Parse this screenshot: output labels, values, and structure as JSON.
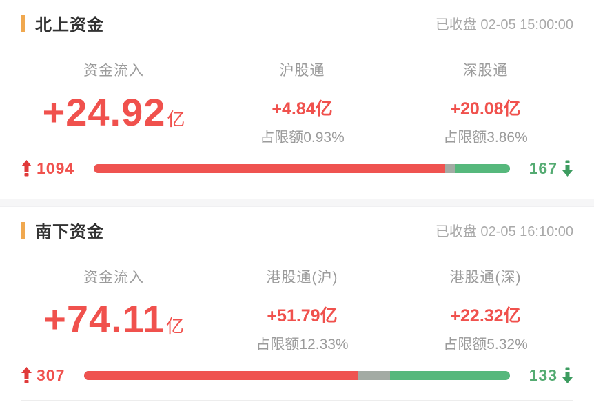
{
  "colors": {
    "accent_orange": "#f0a84f",
    "value_red": "#f0514d",
    "value_green": "#54ab72",
    "bar_red": "#ef5350",
    "bar_gray": "#a3aba4",
    "bar_green": "#56b87c",
    "label_gray": "#9b9b9b"
  },
  "sections": [
    {
      "title": "北上资金",
      "status": "已收盘 02-05 15:00:00",
      "main": {
        "label": "资金流入",
        "value": "+24.92",
        "unit": "亿"
      },
      "columns": [
        {
          "label": "沪股通",
          "value": "+4.84亿",
          "quota": "占限额0.93%"
        },
        {
          "label": "深股通",
          "value": "+20.08亿",
          "quota": "占限额3.86%"
        }
      ],
      "breadth": {
        "up_count": "1094",
        "down_count": "167",
        "red_pct": 84.5,
        "gray_pct": 2.4,
        "green_pct": 13.1
      }
    },
    {
      "title": "南下资金",
      "status": "已收盘 02-05 16:10:00",
      "main": {
        "label": "资金流入",
        "value": "+74.11",
        "unit": "亿"
      },
      "columns": [
        {
          "label": "港股通(沪)",
          "value": "+51.79亿",
          "quota": "占限额12.33%"
        },
        {
          "label": "港股通(深)",
          "value": "+22.32亿",
          "quota": "占限额5.32%"
        }
      ],
      "breadth": {
        "up_count": "307",
        "down_count": "133",
        "red_pct": 64.4,
        "gray_pct": 7.4,
        "green_pct": 28.2
      }
    }
  ]
}
